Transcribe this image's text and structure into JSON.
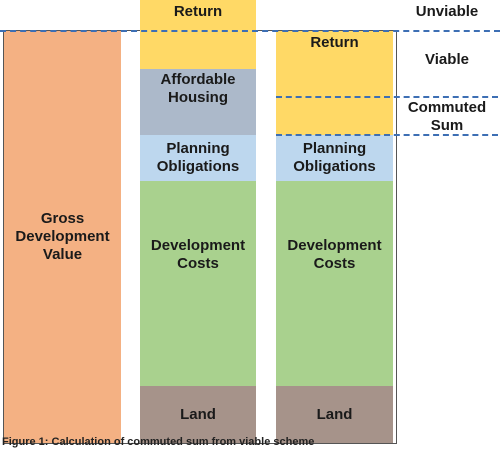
{
  "gdv": {
    "label": "Gross\nDevelopment\nValue",
    "color": "#f4b183"
  },
  "columns": {
    "left": {
      "return": "Return",
      "affordable": "Affordable\nHousing",
      "planning": "Planning\nObligations",
      "dev_costs": "Development\nCosts",
      "land": "Land"
    },
    "right": {
      "return": "Return",
      "planning": "Planning\nObligations",
      "dev_costs": "Development\nCosts",
      "land": "Land"
    }
  },
  "outcomes": {
    "unviable": "Unviable",
    "viable": "Viable",
    "commuted_sum": "Commuted\nSum"
  },
  "caption": "Figure 1: Calculation of commuted sum from viable scheme",
  "colors": {
    "return": "#ffd966",
    "affordable": "#acb9ca",
    "planning": "#bdd7ee",
    "dev_costs": "#a9d18e",
    "land": "#a6938a",
    "dashed_line": "#3d6fb4"
  }
}
